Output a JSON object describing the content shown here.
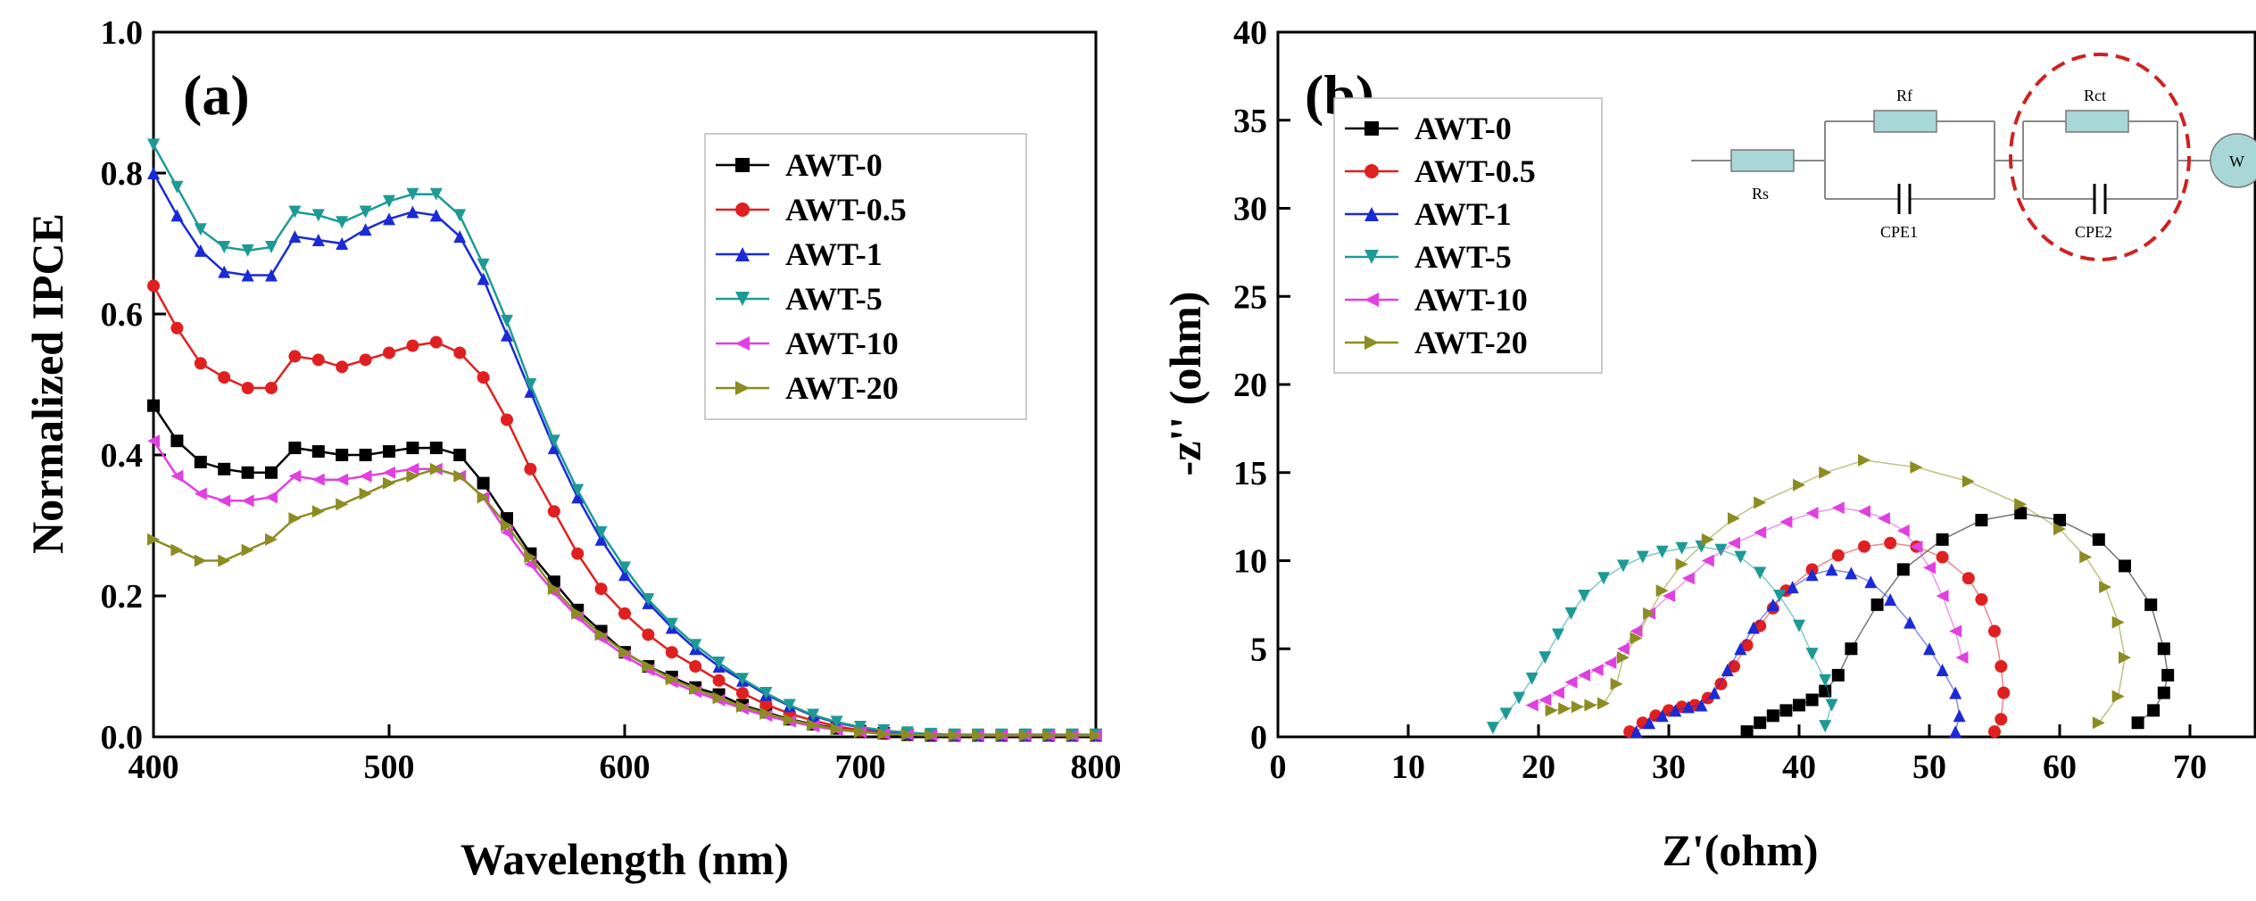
{
  "figure": {
    "caption": ""
  },
  "chart_data": [
    {
      "id": "a",
      "type": "line",
      "panel_label": "(a)",
      "xlabel": "Wavelength (nm)",
      "ylabel": "Normalized IPCE",
      "xlim": [
        400,
        800
      ],
      "ylim": [
        0.0,
        1.0
      ],
      "xticks": [
        400,
        500,
        600,
        700,
        800
      ],
      "xtick_labels": [
        "400",
        "500",
        "600",
        "700",
        "800"
      ],
      "yticks": [
        0.0,
        0.2,
        0.4,
        0.6,
        0.8,
        1.0
      ],
      "ytick_labels": [
        "0.0",
        "0.2",
        "0.4",
        "0.6",
        "0.8",
        "1.0"
      ],
      "legend_position": "center-right",
      "x": [
        400,
        410,
        420,
        430,
        440,
        450,
        460,
        470,
        480,
        490,
        500,
        510,
        520,
        530,
        540,
        550,
        560,
        570,
        580,
        590,
        600,
        610,
        620,
        630,
        640,
        650,
        660,
        670,
        680,
        690,
        700,
        710,
        720,
        730,
        740,
        750,
        760,
        770,
        780,
        790,
        800
      ],
      "series": [
        {
          "name": "AWT-0",
          "marker": "square",
          "color": "#000000",
          "values": [
            0.47,
            0.42,
            0.39,
            0.38,
            0.375,
            0.375,
            0.41,
            0.405,
            0.4,
            0.4,
            0.405,
            0.41,
            0.41,
            0.4,
            0.36,
            0.31,
            0.26,
            0.22,
            0.18,
            0.15,
            0.12,
            0.1,
            0.085,
            0.07,
            0.06,
            0.045,
            0.035,
            0.025,
            0.018,
            0.012,
            0.008,
            0.005,
            0.003,
            0.002,
            0.002,
            0.002,
            0.002,
            0.002,
            0.002,
            0.002,
            0.002
          ]
        },
        {
          "name": "AWT-0.5",
          "marker": "circle",
          "color": "#e02020",
          "values": [
            0.64,
            0.58,
            0.53,
            0.51,
            0.495,
            0.495,
            0.54,
            0.535,
            0.525,
            0.535,
            0.545,
            0.555,
            0.56,
            0.545,
            0.51,
            0.45,
            0.38,
            0.32,
            0.26,
            0.21,
            0.175,
            0.145,
            0.12,
            0.1,
            0.08,
            0.062,
            0.046,
            0.033,
            0.023,
            0.015,
            0.009,
            0.006,
            0.004,
            0.003,
            0.002,
            0.002,
            0.002,
            0.002,
            0.002,
            0.002,
            0.002
          ]
        },
        {
          "name": "AWT-1",
          "marker": "triangle-up",
          "color": "#1a2ad6",
          "values": [
            0.8,
            0.74,
            0.69,
            0.66,
            0.655,
            0.655,
            0.71,
            0.705,
            0.7,
            0.72,
            0.735,
            0.745,
            0.74,
            0.71,
            0.65,
            0.57,
            0.49,
            0.41,
            0.34,
            0.28,
            0.23,
            0.19,
            0.155,
            0.125,
            0.1,
            0.08,
            0.06,
            0.044,
            0.03,
            0.02,
            0.013,
            0.008,
            0.005,
            0.004,
            0.003,
            0.003,
            0.003,
            0.003,
            0.003,
            0.003,
            0.003
          ]
        },
        {
          "name": "AWT-5",
          "marker": "triangle-down",
          "color": "#1e9a96",
          "values": [
            0.84,
            0.78,
            0.72,
            0.695,
            0.69,
            0.695,
            0.745,
            0.74,
            0.73,
            0.745,
            0.76,
            0.77,
            0.77,
            0.74,
            0.67,
            0.59,
            0.5,
            0.42,
            0.35,
            0.29,
            0.24,
            0.195,
            0.16,
            0.13,
            0.105,
            0.082,
            0.062,
            0.045,
            0.031,
            0.021,
            0.014,
            0.009,
            0.006,
            0.004,
            0.003,
            0.003,
            0.003,
            0.003,
            0.003,
            0.003,
            0.003
          ]
        },
        {
          "name": "AWT-10",
          "marker": "triangle-left",
          "color": "#e040e0",
          "values": [
            0.42,
            0.37,
            0.345,
            0.335,
            0.335,
            0.34,
            0.37,
            0.365,
            0.365,
            0.37,
            0.375,
            0.38,
            0.38,
            0.37,
            0.34,
            0.29,
            0.245,
            0.205,
            0.17,
            0.14,
            0.115,
            0.095,
            0.078,
            0.064,
            0.052,
            0.04,
            0.03,
            0.022,
            0.015,
            0.01,
            0.007,
            0.004,
            0.003,
            0.002,
            0.002,
            0.002,
            0.002,
            0.002,
            0.002,
            0.002,
            0.002
          ]
        },
        {
          "name": "AWT-20",
          "marker": "triangle-right",
          "color": "#8c8c22",
          "values": [
            0.28,
            0.265,
            0.25,
            0.25,
            0.265,
            0.28,
            0.31,
            0.32,
            0.33,
            0.345,
            0.36,
            0.37,
            0.38,
            0.37,
            0.34,
            0.3,
            0.255,
            0.21,
            0.175,
            0.145,
            0.12,
            0.1,
            0.082,
            0.068,
            0.055,
            0.043,
            0.033,
            0.024,
            0.017,
            0.011,
            0.007,
            0.004,
            0.003,
            0.002,
            0.002,
            0.002,
            0.002,
            0.002,
            0.002,
            0.002,
            0.002
          ]
        }
      ]
    },
    {
      "id": "b",
      "type": "scatter",
      "panel_label": "(b)",
      "xlabel": "Z'(ohm)",
      "ylabel": "-z'' (ohm)",
      "xlim": [
        0,
        75
      ],
      "ylim": [
        0,
        40
      ],
      "xticks": [
        0,
        10,
        20,
        30,
        40,
        50,
        60,
        70
      ],
      "xtick_labels": [
        "0",
        "10",
        "20",
        "30",
        "40",
        "50",
        "60",
        "70"
      ],
      "yticks": [
        0,
        5,
        10,
        15,
        20,
        25,
        30,
        35,
        40
      ],
      "ytick_labels": [
        "0",
        "5",
        "10",
        "15",
        "20",
        "25",
        "30",
        "35",
        "40"
      ],
      "legend_position": "upper-left",
      "series": [
        {
          "name": "AWT-0",
          "marker": "square",
          "color": "#000000",
          "x": [
            36,
            37,
            38,
            39,
            40,
            41,
            42,
            43,
            44,
            46,
            48,
            51,
            54,
            57,
            60,
            63,
            65,
            67,
            68,
            68.3,
            68,
            67.2,
            66
          ],
          "y": [
            0.3,
            0.8,
            1.2,
            1.5,
            1.8,
            2.1,
            2.6,
            3.5,
            5,
            7.5,
            9.5,
            11.2,
            12.3,
            12.7,
            12.3,
            11.2,
            9.7,
            7.5,
            5,
            3.5,
            2.5,
            1.5,
            0.8
          ]
        },
        {
          "name": "AWT-0.5",
          "marker": "circle",
          "color": "#e02020",
          "x": [
            27,
            28,
            29,
            30,
            31,
            32,
            33,
            34,
            35,
            36,
            37,
            38,
            39,
            41,
            43,
            45,
            47,
            49,
            51,
            53,
            54,
            55,
            55.5,
            55.7,
            55.5,
            55
          ],
          "y": [
            0.3,
            0.8,
            1.2,
            1.5,
            1.7,
            1.8,
            2.2,
            3,
            4,
            5.2,
            6.3,
            7.3,
            8.3,
            9.5,
            10.3,
            10.8,
            11,
            10.8,
            10.2,
            9,
            7.8,
            6,
            4,
            2.5,
            1,
            0.3
          ]
        },
        {
          "name": "AWT-1",
          "marker": "triangle-up",
          "color": "#1a2ad6",
          "x": [
            27.5,
            28.5,
            29.5,
            30.5,
            31.5,
            32.5,
            33.5,
            34.5,
            35.5,
            36.5,
            38,
            39.5,
            41,
            42.5,
            44,
            45.5,
            47,
            48.5,
            50,
            51,
            52,
            52.3,
            52
          ],
          "y": [
            0.3,
            0.8,
            1.2,
            1.5,
            1.7,
            1.8,
            2.5,
            3.8,
            5,
            6.2,
            7.5,
            8.5,
            9.2,
            9.5,
            9.3,
            8.8,
            7.8,
            6.5,
            5,
            3.8,
            2.5,
            1.2,
            0.3
          ]
        },
        {
          "name": "AWT-5",
          "marker": "triangle-down",
          "color": "#1e9a96",
          "x": [
            16.5,
            17.5,
            18.5,
            19.5,
            20.5,
            21.5,
            22.5,
            23.5,
            25,
            26.5,
            28,
            29.5,
            31,
            32.5,
            34,
            35.5,
            37,
            38.5,
            40,
            41,
            42,
            42.5,
            42
          ],
          "y": [
            0.5,
            1.3,
            2.2,
            3.3,
            4.5,
            5.8,
            7,
            8,
            9,
            9.7,
            10.2,
            10.5,
            10.7,
            10.8,
            10.6,
            10.2,
            9.3,
            8,
            6.3,
            4.7,
            3.2,
            1.8,
            0.6
          ]
        },
        {
          "name": "AWT-10",
          "marker": "triangle-left",
          "color": "#e040e0",
          "x": [
            19.5,
            20.5,
            21.5,
            22.5,
            23.5,
            24.5,
            25.5,
            26.5,
            27.5,
            28.5,
            30,
            31.5,
            33,
            35,
            37,
            39,
            41,
            43,
            45,
            46.5,
            48,
            49,
            50,
            51,
            52,
            52.5
          ],
          "y": [
            1.8,
            2.1,
            2.5,
            3.1,
            3.5,
            3.8,
            4.2,
            5,
            6,
            7,
            8,
            9,
            10,
            11,
            11.6,
            12.2,
            12.7,
            13,
            12.8,
            12.4,
            11.7,
            10.8,
            9.6,
            8,
            6,
            4.5
          ]
        },
        {
          "name": "AWT-20",
          "marker": "triangle-right",
          "color": "#8c8c22",
          "x": [
            21,
            22,
            23,
            24,
            25,
            26,
            26.5,
            27.5,
            28.5,
            29.5,
            31,
            33,
            35,
            37,
            40,
            42,
            45,
            49,
            53,
            57,
            60,
            62,
            63.5,
            64.5,
            65,
            64.5,
            63
          ],
          "y": [
            1.5,
            1.6,
            1.7,
            1.8,
            1.9,
            3,
            4.5,
            5.6,
            7,
            8.3,
            9.8,
            11.2,
            12.4,
            13.3,
            14.3,
            15,
            15.7,
            15.3,
            14.5,
            13.2,
            11.8,
            10.2,
            8.5,
            6.5,
            4.5,
            2.3,
            0.8
          ]
        }
      ],
      "circuit": {
        "labels": [
          "Rs",
          "Rf",
          "CPE1",
          "Rct",
          "CPE2",
          "W"
        ],
        "highlight": "Rct-CPE2",
        "highlight_color": "#d02020",
        "element_color": "#a9d7d7"
      }
    }
  ]
}
